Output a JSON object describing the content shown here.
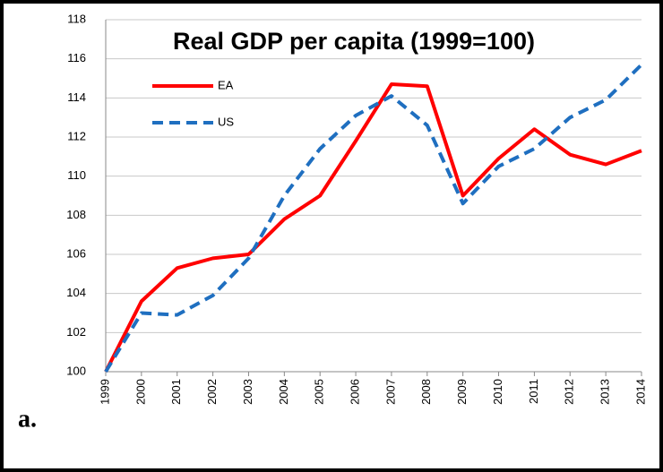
{
  "chart_data": {
    "type": "line",
    "title": "Real GDP per capita (1999=100)",
    "panel_label": "a.",
    "categories": [
      "1999",
      "2000",
      "2001",
      "2002",
      "2003",
      "2004",
      "2005",
      "2006",
      "2007",
      "2008",
      "2009",
      "2010",
      "2011",
      "2012",
      "2013",
      "2014"
    ],
    "series": [
      {
        "name": "EA",
        "color": "#ff0000",
        "dashed": false,
        "values": [
          100,
          103.6,
          105.3,
          105.8,
          106.0,
          107.8,
          109.0,
          111.8,
          114.7,
          114.6,
          109.0,
          110.9,
          112.4,
          111.1,
          110.6,
          111.3
        ]
      },
      {
        "name": "US",
        "color": "#1f6fc0",
        "dashed": true,
        "values": [
          100,
          103.0,
          102.9,
          103.9,
          105.8,
          109.0,
          111.4,
          113.1,
          114.1,
          112.6,
          108.6,
          110.5,
          111.4,
          113.0,
          113.9,
          115.7
        ]
      }
    ],
    "ylim": [
      100,
      118
    ],
    "yticks": [
      100,
      102,
      104,
      106,
      108,
      110,
      112,
      114,
      116,
      118
    ],
    "grid": true
  }
}
